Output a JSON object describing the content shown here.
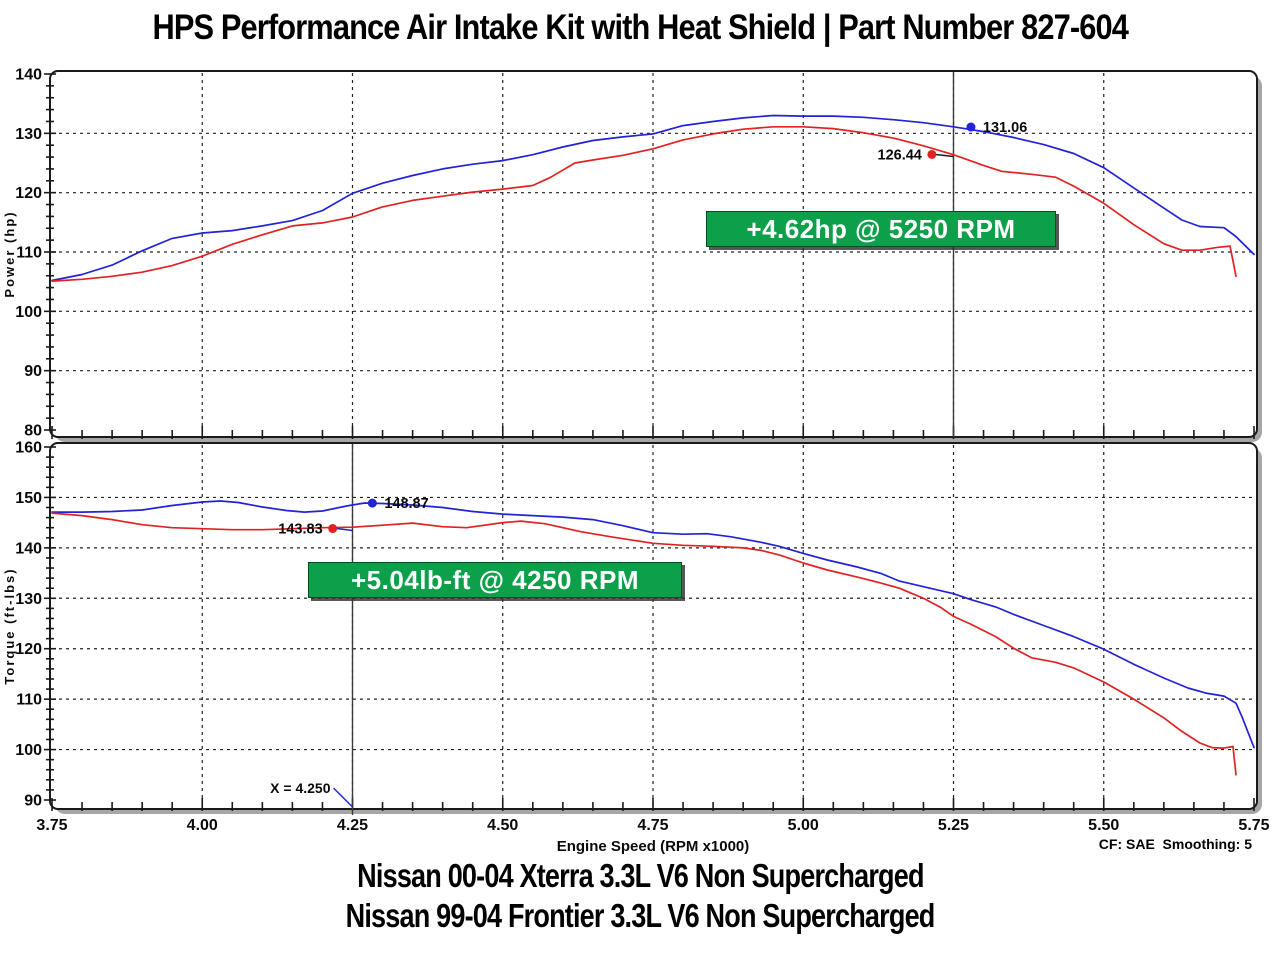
{
  "title": "HPS Performance Air Intake Kit with Heat Shield | Part Number 827-604",
  "captions": [
    "Nissan 00-04 Xterra 3.3L V6 Non Supercharged",
    "Nissan 99-04 Frontier 3.3L V6 Non Supercharged"
  ],
  "footnote": "CF: SAE  Smoothing: 5",
  "annotations": {
    "power": "+4.62hp @ 5250 RPM",
    "torque": "+5.04lb-ft @ 4250 RPM"
  },
  "colors": {
    "blue": "#2222d6",
    "red": "#e02222",
    "green": "#0da04a",
    "grid": "#222222",
    "frame": "#1a1a1a",
    "shadow": "#a6a6a6",
    "cursor": "#3a3a3a"
  },
  "chart_data": [
    {
      "type": "line",
      "ylabel": "Power (hp)",
      "xlabel": "",
      "xlim": [
        3.75,
        5.75
      ],
      "ylim": [
        80,
        140
      ],
      "xticks": [
        "3.75",
        "4.00",
        "4.25",
        "4.50",
        "4.75",
        "5.00",
        "5.25",
        "5.50",
        "5.75"
      ],
      "yticks": [
        140,
        130,
        120,
        110,
        100,
        90,
        80
      ],
      "yminor": 2,
      "xminor": 0.05,
      "grid": true,
      "show_xtick_labels": false,
      "cursor_x": 5.25,
      "series": [
        {
          "name": "blue",
          "color": "blue",
          "marker": {
            "x": 5.279,
            "y": 131.06,
            "label": "131.06",
            "label_side": "right",
            "leader": false
          },
          "points": [
            [
              3.75,
              105.2
            ],
            [
              3.8,
              106.2
            ],
            [
              3.85,
              107.8
            ],
            [
              3.9,
              110.2
            ],
            [
              3.95,
              112.3
            ],
            [
              4.0,
              113.2
            ],
            [
              4.05,
              113.6
            ],
            [
              4.1,
              114.4
            ],
            [
              4.15,
              115.3
            ],
            [
              4.2,
              117.0
            ],
            [
              4.25,
              119.9
            ],
            [
              4.3,
              121.6
            ],
            [
              4.35,
              122.9
            ],
            [
              4.4,
              124.0
            ],
            [
              4.45,
              124.8
            ],
            [
              4.5,
              125.4
            ],
            [
              4.55,
              126.4
            ],
            [
              4.6,
              127.7
            ],
            [
              4.65,
              128.8
            ],
            [
              4.7,
              129.4
            ],
            [
              4.75,
              129.9
            ],
            [
              4.8,
              131.3
            ],
            [
              4.85,
              132.0
            ],
            [
              4.9,
              132.6
            ],
            [
              4.95,
              133.0
            ],
            [
              5.0,
              132.9
            ],
            [
              5.05,
              132.9
            ],
            [
              5.1,
              132.7
            ],
            [
              5.15,
              132.3
            ],
            [
              5.2,
              131.8
            ],
            [
              5.25,
              131.1
            ],
            [
              5.3,
              130.3
            ],
            [
              5.35,
              129.3
            ],
            [
              5.4,
              128.1
            ],
            [
              5.45,
              126.6
            ],
            [
              5.5,
              124.2
            ],
            [
              5.55,
              120.8
            ],
            [
              5.6,
              117.4
            ],
            [
              5.63,
              115.4
            ],
            [
              5.66,
              114.3
            ],
            [
              5.7,
              114.1
            ],
            [
              5.72,
              112.6
            ],
            [
              5.75,
              109.6
            ]
          ]
        },
        {
          "name": "red",
          "color": "red",
          "marker": {
            "x": 5.214,
            "y": 126.44,
            "label": "126.44",
            "label_side": "left",
            "leader": true,
            "leader_color": "frame"
          },
          "points": [
            [
              3.75,
              105.1
            ],
            [
              3.8,
              105.4
            ],
            [
              3.85,
              105.9
            ],
            [
              3.9,
              106.6
            ],
            [
              3.95,
              107.7
            ],
            [
              4.0,
              109.3
            ],
            [
              4.05,
              111.3
            ],
            [
              4.1,
              112.9
            ],
            [
              4.15,
              114.4
            ],
            [
              4.2,
              114.9
            ],
            [
              4.25,
              115.9
            ],
            [
              4.3,
              117.6
            ],
            [
              4.35,
              118.7
            ],
            [
              4.4,
              119.4
            ],
            [
              4.45,
              120.1
            ],
            [
              4.5,
              120.6
            ],
            [
              4.55,
              121.2
            ],
            [
              4.58,
              122.6
            ],
            [
              4.62,
              125.0
            ],
            [
              4.65,
              125.5
            ],
            [
              4.7,
              126.3
            ],
            [
              4.75,
              127.4
            ],
            [
              4.8,
              128.9
            ],
            [
              4.85,
              129.9
            ],
            [
              4.9,
              130.7
            ],
            [
              4.95,
              131.1
            ],
            [
              5.0,
              131.1
            ],
            [
              5.05,
              130.8
            ],
            [
              5.1,
              130.1
            ],
            [
              5.15,
              129.2
            ],
            [
              5.2,
              127.9
            ],
            [
              5.25,
              126.4
            ],
            [
              5.3,
              124.6
            ],
            [
              5.33,
              123.6
            ],
            [
              5.38,
              123.1
            ],
            [
              5.42,
              122.6
            ],
            [
              5.45,
              121.1
            ],
            [
              5.5,
              118.2
            ],
            [
              5.55,
              114.6
            ],
            [
              5.6,
              111.4
            ],
            [
              5.63,
              110.3
            ],
            [
              5.66,
              110.3
            ],
            [
              5.69,
              110.8
            ],
            [
              5.71,
              111.0
            ],
            [
              5.715,
              108.5
            ],
            [
              5.72,
              105.9
            ]
          ]
        }
      ]
    },
    {
      "type": "line",
      "ylabel": "Torque (ft-lbs)",
      "xlabel": "Engine Speed (RPM x1000)",
      "xlim": [
        3.75,
        5.75
      ],
      "ylim": [
        90,
        160
      ],
      "xticks": [
        "3.75",
        "4.00",
        "4.25",
        "4.50",
        "4.75",
        "5.00",
        "5.25",
        "5.50",
        "5.75"
      ],
      "yticks": [
        160,
        150,
        140,
        130,
        120,
        110,
        100,
        90
      ],
      "yminor": 2,
      "xminor": 0.05,
      "grid": true,
      "show_xtick_labels": true,
      "cursor_x": 4.25,
      "cursor_label": "X = 4.250",
      "series": [
        {
          "name": "blue",
          "color": "blue",
          "marker": {
            "x": 4.283,
            "y": 148.87,
            "label": "148.87",
            "label_side": "right",
            "leader": false
          },
          "points": [
            [
              3.75,
              147.1
            ],
            [
              3.8,
              147.1
            ],
            [
              3.85,
              147.2
            ],
            [
              3.9,
              147.5
            ],
            [
              3.95,
              148.4
            ],
            [
              4.0,
              149.1
            ],
            [
              4.03,
              149.3
            ],
            [
              4.06,
              149.0
            ],
            [
              4.1,
              148.1
            ],
            [
              4.14,
              147.4
            ],
            [
              4.17,
              147.1
            ],
            [
              4.2,
              147.3
            ],
            [
              4.24,
              148.3
            ],
            [
              4.27,
              148.9
            ],
            [
              4.3,
              148.8
            ],
            [
              4.35,
              148.5
            ],
            [
              4.4,
              148.0
            ],
            [
              4.45,
              147.2
            ],
            [
              4.5,
              146.7
            ],
            [
              4.55,
              146.4
            ],
            [
              4.6,
              146.1
            ],
            [
              4.65,
              145.6
            ],
            [
              4.7,
              144.4
            ],
            [
              4.75,
              143.0
            ],
            [
              4.8,
              142.7
            ],
            [
              4.84,
              142.8
            ],
            [
              4.88,
              142.2
            ],
            [
              4.93,
              141.1
            ],
            [
              4.96,
              140.3
            ],
            [
              5.0,
              138.9
            ],
            [
              5.04,
              137.6
            ],
            [
              5.09,
              136.2
            ],
            [
              5.13,
              134.9
            ],
            [
              5.16,
              133.4
            ],
            [
              5.2,
              132.3
            ],
            [
              5.25,
              130.9
            ],
            [
              5.28,
              129.7
            ],
            [
              5.32,
              128.3
            ],
            [
              5.35,
              126.8
            ],
            [
              5.4,
              124.6
            ],
            [
              5.45,
              122.4
            ],
            [
              5.5,
              119.9
            ],
            [
              5.55,
              116.9
            ],
            [
              5.6,
              114.2
            ],
            [
              5.64,
              112.2
            ],
            [
              5.67,
              111.2
            ],
            [
              5.7,
              110.6
            ],
            [
              5.72,
              109.2
            ],
            [
              5.73,
              106.5
            ],
            [
              5.75,
              100.4
            ]
          ]
        },
        {
          "name": "red",
          "color": "red",
          "marker": {
            "x": 4.217,
            "y": 143.83,
            "label": "143.83",
            "label_side": "left",
            "leader": true,
            "leader_color": "blue"
          },
          "points": [
            [
              3.75,
              146.9
            ],
            [
              3.8,
              146.4
            ],
            [
              3.85,
              145.6
            ],
            [
              3.9,
              144.6
            ],
            [
              3.95,
              144.0
            ],
            [
              4.0,
              143.8
            ],
            [
              4.05,
              143.6
            ],
            [
              4.1,
              143.6
            ],
            [
              4.15,
              143.8
            ],
            [
              4.2,
              144.0
            ],
            [
              4.25,
              144.1
            ],
            [
              4.3,
              144.5
            ],
            [
              4.35,
              144.9
            ],
            [
              4.4,
              144.2
            ],
            [
              4.44,
              144.0
            ],
            [
              4.5,
              145.0
            ],
            [
              4.53,
              145.3
            ],
            [
              4.57,
              144.8
            ],
            [
              4.63,
              143.2
            ],
            [
              4.68,
              142.2
            ],
            [
              4.75,
              140.9
            ],
            [
              4.8,
              140.5
            ],
            [
              4.85,
              140.3
            ],
            [
              4.9,
              140.0
            ],
            [
              4.93,
              139.5
            ],
            [
              4.96,
              138.6
            ],
            [
              5.0,
              137.0
            ],
            [
              5.04,
              135.6
            ],
            [
              5.09,
              134.2
            ],
            [
              5.13,
              133.0
            ],
            [
              5.16,
              132.0
            ],
            [
              5.2,
              130.0
            ],
            [
              5.23,
              128.1
            ],
            [
              5.25,
              126.4
            ],
            [
              5.28,
              124.8
            ],
            [
              5.32,
              122.4
            ],
            [
              5.35,
              120.1
            ],
            [
              5.38,
              118.2
            ],
            [
              5.42,
              117.3
            ],
            [
              5.45,
              116.2
            ],
            [
              5.5,
              113.4
            ],
            [
              5.55,
              110.0
            ],
            [
              5.6,
              106.3
            ],
            [
              5.63,
              103.6
            ],
            [
              5.66,
              101.3
            ],
            [
              5.68,
              100.4
            ],
            [
              5.7,
              100.3
            ],
            [
              5.715,
              100.6
            ],
            [
              5.72,
              95.0
            ]
          ]
        }
      ]
    }
  ]
}
